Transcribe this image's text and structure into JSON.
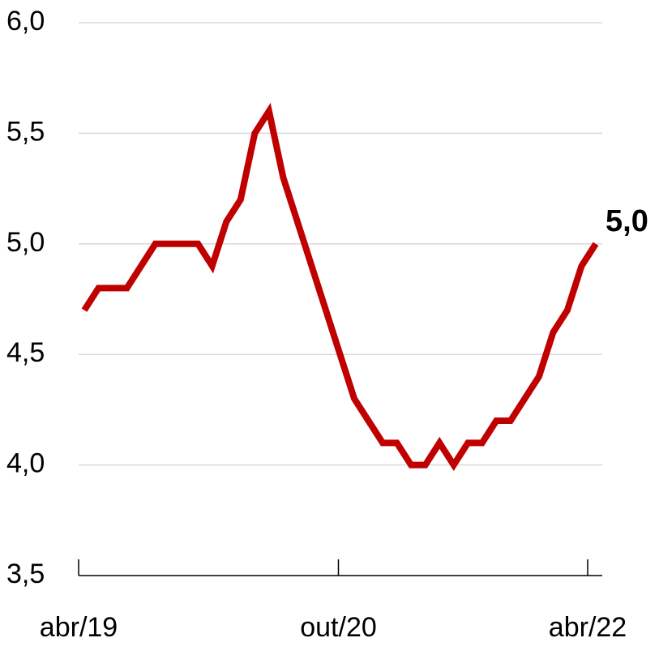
{
  "chart_data": {
    "type": "line",
    "categories": [
      "abr/19",
      null,
      null,
      null,
      null,
      null,
      null,
      null,
      null,
      null,
      null,
      null,
      null,
      null,
      null,
      null,
      null,
      null,
      "out/20",
      null,
      null,
      null,
      null,
      null,
      null,
      null,
      null,
      null,
      null,
      null,
      null,
      null,
      null,
      null,
      null,
      null,
      "abr/22"
    ],
    "series": [
      {
        "color": "#c00000",
        "values": [
          4.7,
          4.8,
          4.8,
          4.8,
          4.9,
          5.0,
          5.0,
          5.0,
          5.0,
          4.9,
          5.1,
          5.2,
          5.5,
          5.6,
          5.3,
          5.1,
          4.9,
          4.7,
          4.5,
          4.3,
          4.2,
          4.1,
          4.1,
          4.0,
          4.0,
          4.1,
          4.0,
          4.1,
          4.1,
          4.2,
          4.2,
          4.3,
          4.4,
          4.6,
          4.7,
          4.9,
          5.0
        ],
        "value_labels": [
          null,
          null,
          null,
          null,
          null,
          null,
          null,
          null,
          null,
          null,
          null,
          null,
          null,
          null,
          null,
          null,
          null,
          null,
          null,
          null,
          null,
          null,
          null,
          null,
          null,
          null,
          null,
          null,
          null,
          null,
          null,
          null,
          null,
          null,
          null,
          null,
          "5,0"
        ]
      }
    ],
    "ylim": [
      3.5,
      6.0
    ],
    "yticks": [
      {
        "value": 3.5,
        "label": "3,5"
      },
      {
        "value": 4.0,
        "label": "4,0"
      },
      {
        "value": 4.5,
        "label": "4,5"
      },
      {
        "value": 5.0,
        "label": "5,0"
      },
      {
        "value": 5.5,
        "label": "5,5"
      },
      {
        "value": 6.0,
        "label": "6,0"
      }
    ],
    "grid": true
  }
}
